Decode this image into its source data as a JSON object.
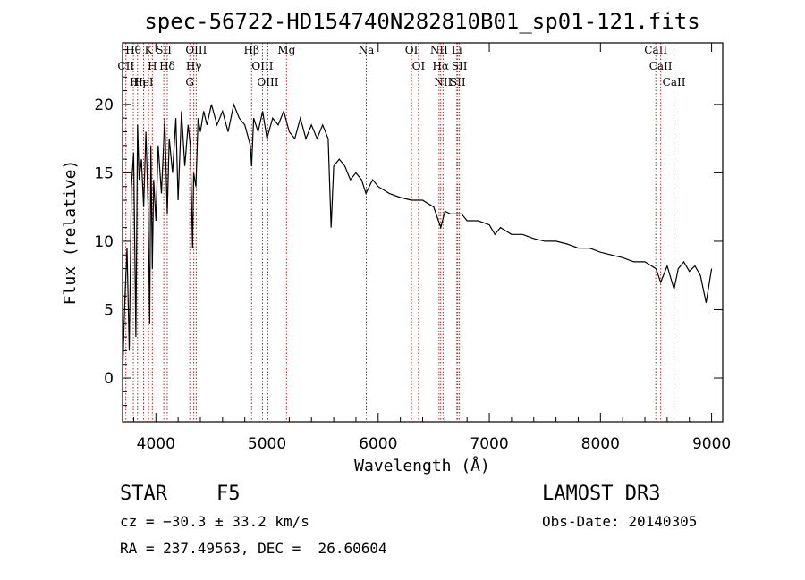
{
  "chart_data": {
    "type": "line",
    "title": "spec-56722-HD154740N282810B01_sp01-121.fits",
    "xlabel": "Wavelength (Å)",
    "ylabel": "Flux (relative)",
    "xlim": [
      3700,
      9100
    ],
    "ylim": [
      -3.2,
      24.5
    ],
    "xticks": [
      4000,
      5000,
      6000,
      7000,
      8000,
      9000
    ],
    "xtick_labels": [
      "4000",
      "5000",
      "6000",
      "7000",
      "8000",
      "9000"
    ],
    "yticks": [
      0,
      5,
      10,
      15,
      20
    ],
    "ytick_labels": [
      "0",
      "5",
      "10",
      "15",
      "20"
    ],
    "series": [
      {
        "name": "spectrum",
        "x": [
          3700,
          3720,
          3740,
          3760,
          3780,
          3800,
          3820,
          3835,
          3850,
          3870,
          3890,
          3910,
          3930,
          3945,
          3955,
          3968,
          3980,
          4000,
          4020,
          4050,
          4080,
          4102,
          4120,
          4150,
          4180,
          4200,
          4230,
          4260,
          4290,
          4310,
          4330,
          4340,
          4360,
          4380,
          4400,
          4430,
          4460,
          4500,
          4550,
          4600,
          4650,
          4700,
          4750,
          4800,
          4850,
          4861,
          4880,
          4920,
          4960,
          5000,
          5050,
          5100,
          5150,
          5200,
          5250,
          5300,
          5350,
          5400,
          5450,
          5500,
          5550,
          5577,
          5600,
          5650,
          5700,
          5750,
          5800,
          5850,
          5890,
          5950,
          6000,
          6100,
          6200,
          6300,
          6400,
          6500,
          6563,
          6600,
          6650,
          6700,
          6750,
          6800,
          6900,
          7000,
          7050,
          7100,
          7200,
          7300,
          7400,
          7500,
          7600,
          7700,
          7800,
          7900,
          8000,
          8100,
          8200,
          8300,
          8400,
          8500,
          8542,
          8600,
          8662,
          8700,
          8750,
          8800,
          8850,
          8900,
          8950,
          9000
        ],
        "values": [
          0.2,
          5.5,
          9.5,
          2.0,
          14.0,
          16.5,
          3.0,
          18.5,
          14.5,
          16.0,
          12.5,
          18.0,
          12.5,
          4.0,
          17.0,
          8.0,
          14.5,
          11.5,
          17.0,
          13.5,
          19.0,
          12.0,
          17.5,
          15.0,
          19.0,
          13.0,
          19.5,
          15.5,
          18.5,
          17.0,
          9.5,
          15.0,
          14.0,
          19.0,
          18.0,
          19.5,
          18.5,
          20.0,
          18.5,
          19.5,
          18.0,
          20.0,
          19.0,
          18.5,
          17.0,
          15.5,
          19.0,
          18.0,
          19.5,
          17.5,
          19.0,
          18.5,
          19.5,
          18.0,
          17.5,
          19.0,
          17.5,
          18.5,
          17.5,
          18.5,
          17.5,
          11.0,
          15.5,
          16.0,
          15.5,
          14.5,
          15.0,
          14.5,
          13.5,
          14.5,
          14.0,
          13.5,
          13.2,
          13.0,
          13.0,
          12.5,
          11.0,
          12.2,
          12.0,
          12.0,
          12.0,
          11.5,
          11.5,
          11.2,
          10.5,
          11.0,
          10.5,
          10.5,
          10.2,
          10.0,
          10.0,
          9.8,
          9.5,
          9.5,
          9.2,
          9.0,
          8.8,
          8.5,
          8.5,
          8.0,
          7.0,
          8.2,
          6.5,
          8.0,
          8.5,
          7.8,
          8.2,
          7.5,
          5.5,
          8.0
        ]
      }
    ],
    "emission_lines": [
      {
        "label": "Hθ",
        "wl": 3797
      },
      {
        "label": "CII",
        "wl": 3730
      },
      {
        "label": "HeI",
        "wl": 3889
      },
      {
        "label": "Hη",
        "wl": 3835
      },
      {
        "label": "K",
        "wl": 3934
      },
      {
        "label": "H",
        "wl": 3968
      },
      {
        "label": "SII",
        "wl": 4071
      },
      {
        "label": "Hδ",
        "wl": 4102
      },
      {
        "label": "OIII",
        "wl": 4363
      },
      {
        "label": "Hγ",
        "wl": 4341
      },
      {
        "label": "G",
        "wl": 4305
      },
      {
        "label": "Hβ",
        "wl": 4861
      },
      {
        "label": "OIII",
        "wl": 4959
      },
      {
        "label": "OIII",
        "wl": 5007
      },
      {
        "label": "Mg",
        "wl": 5175
      },
      {
        "label": "Na",
        "wl": 5893
      },
      {
        "label": "OI",
        "wl": 6300
      },
      {
        "label": "OI",
        "wl": 6363
      },
      {
        "label": "NII",
        "wl": 6548
      },
      {
        "label": "Hα",
        "wl": 6563
      },
      {
        "label": "NII",
        "wl": 6584
      },
      {
        "label": "Li",
        "wl": 6708
      },
      {
        "label": "SII",
        "wl": 6716
      },
      {
        "label": "SII",
        "wl": 6731
      },
      {
        "label": "CaII",
        "wl": 8498
      },
      {
        "label": "CaII",
        "wl": 8542
      },
      {
        "label": "CaII",
        "wl": 8662
      }
    ]
  },
  "info": {
    "object_class": "STAR",
    "subclass": "F5",
    "survey": "LAMOST DR3",
    "redshift_line": "cz = −30.3 ± 33.2 km/s",
    "obs_date": "Obs-Date: 20140305",
    "coords": "RA = 237.49563, DEC =  26.60604"
  },
  "colors": {
    "spectrum": "#000000",
    "line_markers": "#b22222"
  }
}
